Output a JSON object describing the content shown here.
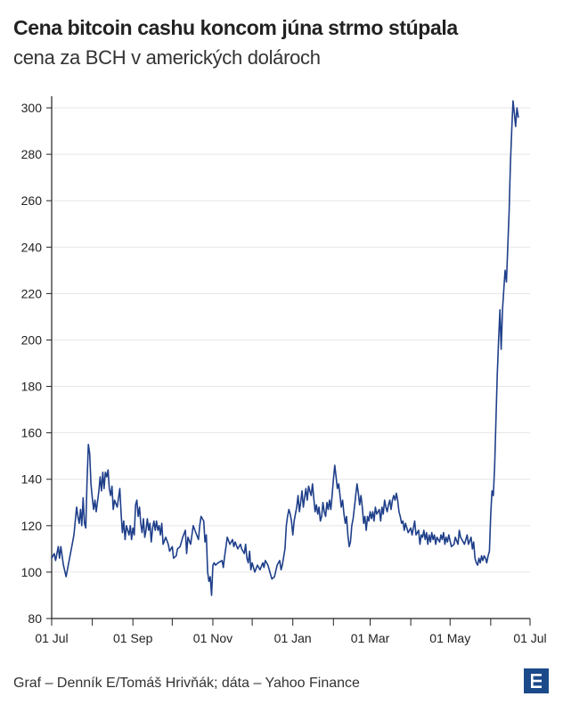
{
  "header": {
    "title": "Cena bitcoin cashu koncom júna strmo stúpala",
    "subtitle": "cena za BCH v amerických dolároch"
  },
  "footer": {
    "credit": "Graf – Denník E/Tomáš Hrivňák; dáta – Yahoo Finance"
  },
  "logo": {
    "icon": "dennik-e-logo",
    "color": "#1b4a8a"
  },
  "colors": {
    "line": "#1f3f8a",
    "grid": "#e6e6e6",
    "axis": "#222222"
  },
  "chart_data": {
    "type": "line",
    "title": "Cena bitcoin cashu koncom júna strmo stúpala",
    "subtitle": "cena za BCH v amerických dolároch",
    "xlabel": "",
    "ylabel": "",
    "x_ticks": [
      "01 Jul",
      "01 Sep",
      "01 Nov",
      "01 Jan",
      "01 Mar",
      "01 May",
      "01 Jul"
    ],
    "y_ticks": [
      80,
      100,
      120,
      140,
      160,
      180,
      200,
      220,
      240,
      260,
      280,
      300
    ],
    "ylim": [
      80,
      305
    ],
    "x_unit": "days since 01 Jul",
    "x_range": [
      0,
      365
    ],
    "grid": "horizontal",
    "series": [
      {
        "name": "BCH",
        "points": [
          [
            0,
            106
          ],
          [
            2,
            108
          ],
          [
            3,
            105
          ],
          [
            5,
            111
          ],
          [
            6,
            106
          ],
          [
            7,
            111
          ],
          [
            9,
            103
          ],
          [
            11,
            98
          ],
          [
            13,
            104
          ],
          [
            15,
            110
          ],
          [
            17,
            116
          ],
          [
            18,
            122
          ],
          [
            19,
            128
          ],
          [
            20,
            124
          ],
          [
            21,
            121
          ],
          [
            22,
            127
          ],
          [
            23,
            120
          ],
          [
            24,
            132
          ],
          [
            25,
            121
          ],
          [
            26,
            119
          ],
          [
            27,
            139
          ],
          [
            28,
            155
          ],
          [
            29,
            151
          ],
          [
            30,
            138
          ],
          [
            31,
            132
          ],
          [
            32,
            127
          ],
          [
            33,
            131
          ],
          [
            34,
            126
          ],
          [
            36,
            135
          ],
          [
            37,
            141
          ],
          [
            38,
            135
          ],
          [
            39,
            143
          ],
          [
            40,
            136
          ],
          [
            41,
            143
          ],
          [
            42,
            141
          ],
          [
            43,
            144
          ],
          [
            44,
            136
          ],
          [
            45,
            133
          ],
          [
            46,
            137
          ],
          [
            47,
            127
          ],
          [
            48,
            131
          ],
          [
            50,
            128
          ],
          [
            52,
            136
          ],
          [
            53,
            125
          ],
          [
            54,
            117
          ],
          [
            55,
            122
          ],
          [
            56,
            114
          ],
          [
            57,
            120
          ],
          [
            59,
            116
          ],
          [
            60,
            120
          ],
          [
            61,
            114
          ],
          [
            62,
            119
          ],
          [
            63,
            116
          ],
          [
            64,
            129
          ],
          [
            65,
            131
          ],
          [
            66,
            124
          ],
          [
            67,
            128
          ],
          [
            68,
            121
          ],
          [
            69,
            117
          ],
          [
            70,
            123
          ],
          [
            71,
            115
          ],
          [
            72,
            118
          ],
          [
            73,
            123
          ],
          [
            74,
            118
          ],
          [
            75,
            121
          ],
          [
            76,
            113
          ],
          [
            77,
            119
          ],
          [
            78,
            122
          ],
          [
            79,
            118
          ],
          [
            80,
            122
          ],
          [
            81,
            118
          ],
          [
            82,
            120
          ],
          [
            83,
            116
          ],
          [
            84,
            121
          ],
          [
            85,
            112
          ],
          [
            87,
            115
          ],
          [
            89,
            112
          ],
          [
            90,
            109
          ],
          [
            92,
            111
          ],
          [
            93,
            106
          ],
          [
            95,
            107
          ],
          [
            96,
            110
          ],
          [
            98,
            111
          ],
          [
            100,
            115
          ],
          [
            102,
            118
          ],
          [
            103,
            108
          ],
          [
            104,
            115
          ],
          [
            106,
            112
          ],
          [
            108,
            120
          ],
          [
            110,
            117
          ],
          [
            112,
            114
          ],
          [
            113,
            120
          ],
          [
            114,
            124
          ],
          [
            115,
            123
          ],
          [
            116,
            122
          ],
          [
            117,
            113
          ],
          [
            118,
            116
          ],
          [
            119,
            100
          ],
          [
            120,
            96
          ],
          [
            121,
            98
          ],
          [
            122,
            90
          ],
          [
            123,
            103
          ],
          [
            124,
            104
          ],
          [
            125,
            103
          ],
          [
            127,
            104
          ],
          [
            130,
            105
          ],
          [
            131,
            102
          ],
          [
            132,
            107
          ],
          [
            133,
            111
          ],
          [
            134,
            115
          ],
          [
            136,
            112
          ],
          [
            138,
            114
          ],
          [
            139,
            111
          ],
          [
            140,
            113
          ],
          [
            142,
            110
          ],
          [
            144,
            112
          ],
          [
            145,
            110
          ],
          [
            147,
            108
          ],
          [
            148,
            112
          ],
          [
            149,
            106
          ],
          [
            150,
            104
          ],
          [
            151,
            109
          ],
          [
            152,
            101
          ],
          [
            153,
            104
          ],
          [
            155,
            100
          ],
          [
            157,
            103
          ],
          [
            159,
            101
          ],
          [
            161,
            104
          ],
          [
            162,
            102
          ],
          [
            163,
            105
          ],
          [
            165,
            103
          ],
          [
            167,
            99
          ],
          [
            168,
            97
          ],
          [
            170,
            98
          ],
          [
            172,
            103
          ],
          [
            174,
            105
          ],
          [
            175,
            101
          ],
          [
            176,
            103
          ],
          [
            178,
            110
          ],
          [
            179,
            120
          ],
          [
            180,
            124
          ],
          [
            181,
            127
          ],
          [
            182,
            125
          ],
          [
            183,
            122
          ],
          [
            184,
            116
          ],
          [
            185,
            122
          ],
          [
            186,
            125
          ],
          [
            187,
            128
          ],
          [
            188,
            133
          ],
          [
            189,
            126
          ],
          [
            190,
            130
          ],
          [
            191,
            135
          ],
          [
            192,
            128
          ],
          [
            193,
            132
          ],
          [
            194,
            136
          ],
          [
            195,
            131
          ],
          [
            196,
            137
          ],
          [
            197,
            135
          ],
          [
            198,
            133
          ],
          [
            199,
            138
          ],
          [
            200,
            132
          ],
          [
            201,
            126
          ],
          [
            202,
            129
          ],
          [
            203,
            125
          ],
          [
            204,
            128
          ],
          [
            205,
            122
          ],
          [
            206,
            124
          ],
          [
            207,
            130
          ],
          [
            208,
            126
          ],
          [
            209,
            124
          ],
          [
            210,
            130
          ],
          [
            211,
            127
          ],
          [
            212,
            131
          ],
          [
            213,
            127
          ],
          [
            214,
            133
          ],
          [
            215,
            140
          ],
          [
            216,
            146
          ],
          [
            217,
            141
          ],
          [
            218,
            136
          ],
          [
            219,
            138
          ],
          [
            220,
            133
          ],
          [
            221,
            128
          ],
          [
            222,
            131
          ],
          [
            223,
            125
          ],
          [
            224,
            121
          ],
          [
            225,
            124
          ],
          [
            226,
            116
          ],
          [
            227,
            111
          ],
          [
            228,
            113
          ],
          [
            229,
            120
          ],
          [
            230,
            123
          ],
          [
            231,
            128
          ],
          [
            232,
            133
          ],
          [
            233,
            138
          ],
          [
            234,
            134
          ],
          [
            235,
            129
          ],
          [
            236,
            133
          ],
          [
            237,
            128
          ],
          [
            238,
            121
          ],
          [
            239,
            124
          ],
          [
            240,
            118
          ],
          [
            241,
            124
          ],
          [
            242,
            122
          ],
          [
            243,
            126
          ],
          [
            244,
            123
          ],
          [
            245,
            126
          ],
          [
            246,
            122
          ],
          [
            247,
            128
          ],
          [
            248,
            125
          ],
          [
            250,
            127
          ],
          [
            251,
            122
          ],
          [
            252,
            128
          ],
          [
            253,
            125
          ],
          [
            254,
            131
          ],
          [
            255,
            128
          ],
          [
            256,
            126
          ],
          [
            257,
            129
          ],
          [
            258,
            131
          ],
          [
            259,
            127
          ],
          [
            260,
            131
          ],
          [
            261,
            133
          ],
          [
            262,
            131
          ],
          [
            263,
            134
          ],
          [
            264,
            131
          ],
          [
            265,
            126
          ],
          [
            266,
            124
          ],
          [
            267,
            121
          ],
          [
            268,
            122
          ],
          [
            269,
            118
          ],
          [
            270,
            121
          ],
          [
            272,
            117
          ],
          [
            274,
            119
          ],
          [
            275,
            116
          ],
          [
            277,
            122
          ],
          [
            278,
            116
          ],
          [
            280,
            118
          ],
          [
            281,
            112
          ],
          [
            282,
            116
          ],
          [
            283,
            115
          ],
          [
            284,
            118
          ],
          [
            285,
            114
          ],
          [
            286,
            117
          ],
          [
            287,
            112
          ],
          [
            288,
            116
          ],
          [
            289,
            113
          ],
          [
            290,
            117
          ],
          [
            291,
            114
          ],
          [
            292,
            116
          ],
          [
            293,
            112
          ],
          [
            294,
            115
          ],
          [
            296,
            113
          ],
          [
            297,
            116
          ],
          [
            298,
            114
          ],
          [
            299,
            117
          ],
          [
            300,
            112
          ],
          [
            301,
            115
          ],
          [
            302,
            113
          ],
          [
            303,
            116
          ],
          [
            305,
            111
          ],
          [
            307,
            112
          ],
          [
            308,
            115
          ],
          [
            310,
            112
          ],
          [
            311,
            118
          ],
          [
            312,
            115
          ],
          [
            313,
            114
          ],
          [
            315,
            112
          ],
          [
            317,
            116
          ],
          [
            318,
            112
          ],
          [
            320,
            115
          ],
          [
            321,
            110
          ],
          [
            322,
            113
          ],
          [
            323,
            106
          ],
          [
            324,
            104
          ],
          [
            325,
            103
          ],
          [
            326,
            106
          ],
          [
            327,
            104
          ],
          [
            328,
            107
          ],
          [
            329,
            105
          ],
          [
            330,
            107
          ],
          [
            331,
            106
          ],
          [
            332,
            104
          ],
          [
            333,
            107
          ],
          [
            334,
            109
          ],
          [
            335,
            125
          ],
          [
            336,
            135
          ],
          [
            337,
            133
          ],
          [
            338,
            146
          ],
          [
            339,
            165
          ],
          [
            340,
            185
          ],
          [
            341,
            200
          ],
          [
            342,
            213
          ],
          [
            343,
            196
          ],
          [
            344,
            213
          ],
          [
            345,
            222
          ],
          [
            346,
            230
          ],
          [
            347,
            225
          ],
          [
            348,
            240
          ],
          [
            349,
            255
          ],
          [
            350,
            275
          ],
          [
            351,
            290
          ],
          [
            352,
            303
          ],
          [
            353,
            298
          ],
          [
            354,
            292
          ],
          [
            355,
            300
          ],
          [
            356,
            296
          ]
        ]
      }
    ]
  }
}
